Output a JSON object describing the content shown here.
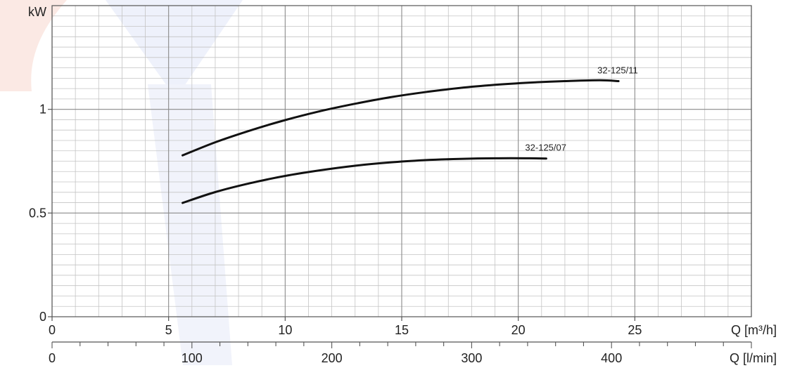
{
  "chart_data": {
    "type": "line",
    "title": "",
    "ylabel": "kW",
    "xlabel": "Q [m³/h]",
    "xlabel_secondary": "Q [l/min]",
    "xlim": [
      0,
      30
    ],
    "ylim": [
      0,
      1.5
    ],
    "secondary_xlim": [
      0,
      500
    ],
    "x_ticks": [
      0,
      5,
      10,
      15,
      20,
      25
    ],
    "y_ticks": [
      0,
      0.5,
      1
    ],
    "y_tick_labels": [
      "0",
      "0.5",
      "1"
    ],
    "secondary_x_ticks": [
      0,
      100,
      200,
      300,
      400
    ],
    "grid": true,
    "series": [
      {
        "name": "32-125/11",
        "color": "#111111",
        "x": [
          5.6,
          7,
          8.5,
          10,
          11.5,
          13,
          14.5,
          16,
          17.5,
          19,
          20.5,
          22,
          23.5,
          24.3
        ],
        "y": [
          0.778,
          0.841,
          0.898,
          0.948,
          0.991,
          1.027,
          1.058,
          1.083,
          1.103,
          1.118,
          1.129,
          1.136,
          1.14,
          1.136
        ]
      },
      {
        "name": "32-125/07",
        "color": "#111111",
        "x": [
          5.6,
          7,
          8.5,
          10,
          11.5,
          13,
          14.5,
          16,
          17.5,
          19,
          20.5,
          21.2
        ],
        "y": [
          0.549,
          0.601,
          0.644,
          0.679,
          0.706,
          0.728,
          0.744,
          0.755,
          0.761,
          0.764,
          0.764,
          0.763
        ]
      }
    ]
  }
}
